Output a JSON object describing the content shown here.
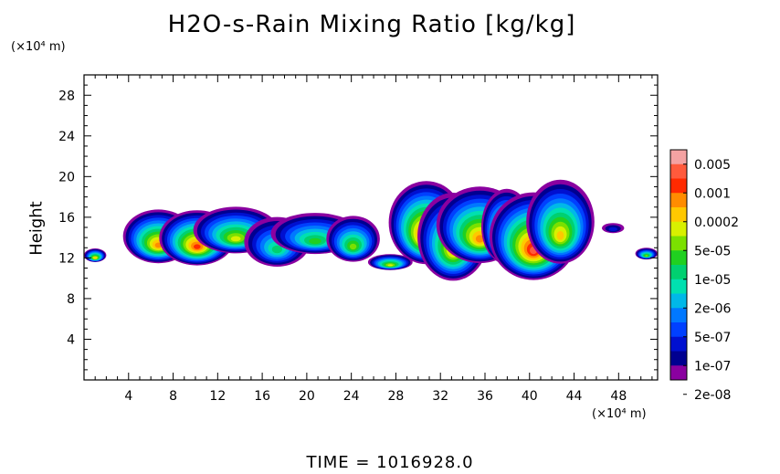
{
  "chart_data": {
    "type": "contourf",
    "title": "H2O-s-Rain Mixing Ratio [kg/kg]",
    "ylabel": "Height",
    "x_unit_label": "(×10⁴ m)",
    "y_unit_label": "(×10⁴ m)",
    "footer": "TIME  =  1016928.0",
    "xlim": [
      0,
      51.5
    ],
    "ylim": [
      0,
      30
    ],
    "x_ticks": [
      4,
      8,
      12,
      16,
      20,
      24,
      28,
      32,
      36,
      40,
      44,
      48
    ],
    "y_ticks": [
      4,
      8,
      12,
      16,
      20,
      24,
      28
    ],
    "colorbar": {
      "labels": [
        "0.005",
        "0.001",
        "0.0002",
        "5e-05",
        "1e-05",
        "2e-06",
        "5e-07",
        "1e-07",
        "2e-08"
      ],
      "colors": [
        "#f4a2a2",
        "#ff5a3c",
        "#ff2a00",
        "#ff8c00",
        "#ffc800",
        "#d8f000",
        "#7be000",
        "#20d020",
        "#00d070",
        "#00e0b0",
        "#00b8e8",
        "#0078ff",
        "#0040ff",
        "#0010d0",
        "#000090",
        "#8a00a0"
      ]
    },
    "regions": [
      {
        "x": [
          0,
          2
        ],
        "y": [
          11.2,
          13.0
        ],
        "peak": "5e-05"
      },
      {
        "x": [
          4.8,
          15.5
        ],
        "y": [
          11.5,
          17.0
        ],
        "peak": "0.0002"
      },
      {
        "x": [
          15.5,
          26.0
        ],
        "y": [
          11.5,
          16.5
        ],
        "peak": "1e-05"
      },
      {
        "x": [
          25.5,
          29.5
        ],
        "y": [
          10.5,
          12.5
        ],
        "peak": "0.0002"
      },
      {
        "x": [
          27.5,
          46.0
        ],
        "y": [
          10.5,
          19.2
        ],
        "peak": "0.001"
      },
      {
        "x": [
          46.5,
          48.5
        ],
        "y": [
          14.5,
          15.5
        ],
        "peak": "1e-07"
      },
      {
        "x": [
          49.5,
          51.5
        ],
        "y": [
          11.8,
          13.2
        ],
        "peak": "5e-05"
      }
    ]
  }
}
